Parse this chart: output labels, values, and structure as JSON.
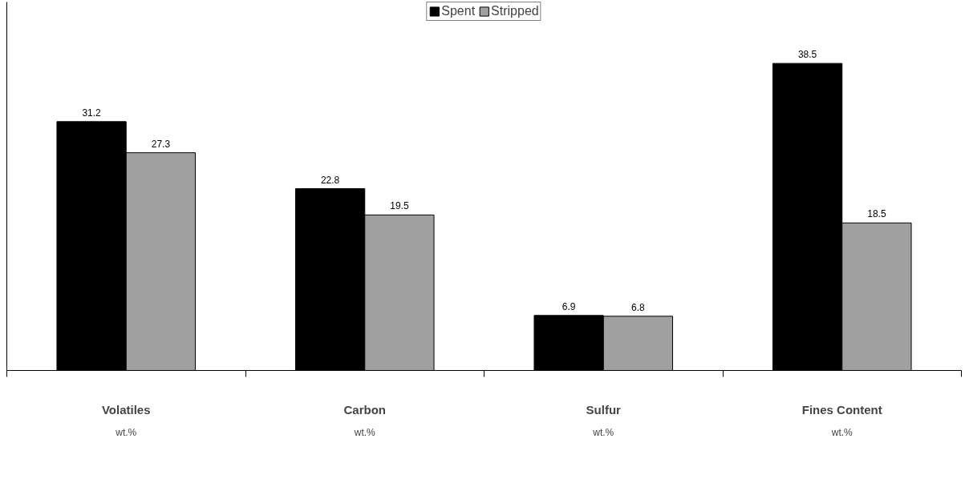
{
  "chart_data": {
    "type": "bar",
    "categories": [
      "Volatiles\nwt.%",
      "Carbon\nwt.%",
      "Sulfur\nwt.%",
      "Fines Content\nwt.%"
    ],
    "series": [
      {
        "name": "Spent",
        "color": "#000000",
        "values": [
          31.2,
          22.8,
          6.9,
          38.5
        ]
      },
      {
        "name": "Stripped",
        "color": "#a0a0a0",
        "values": [
          27.3,
          19.5,
          6.8,
          18.5
        ]
      }
    ],
    "data_labels": true,
    "legend": "top",
    "grid": false
  }
}
